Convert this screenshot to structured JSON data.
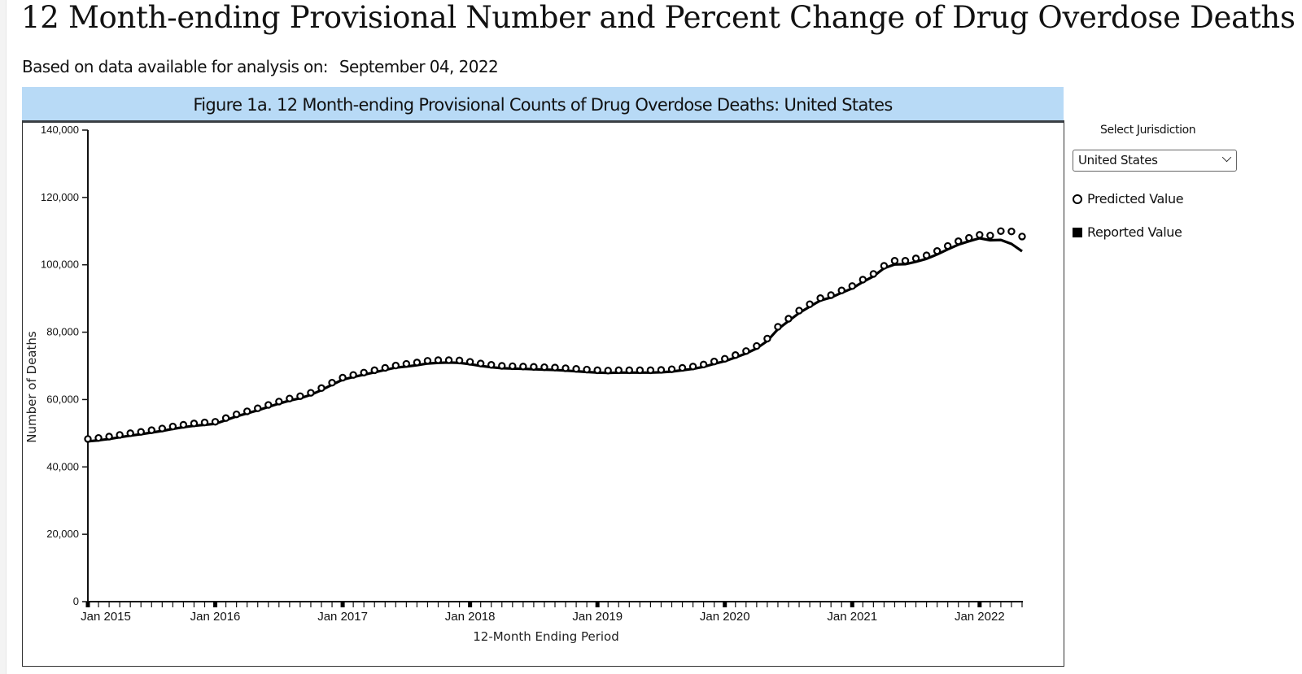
{
  "page": {
    "title": "12 Month-ending Provisional Number and Percent Change of Drug Overdose Deaths",
    "subtitle_label": "Based on data available for analysis on:",
    "subtitle_date": "September 04, 2022"
  },
  "controls": {
    "select_label": "Select Jurisdiction",
    "jurisdiction_selected": "United States"
  },
  "legend": {
    "predicted_label": "Predicted Value",
    "reported_label": "Reported Value"
  },
  "colors": {
    "header_bg": "#b8daf6",
    "series": "#000000"
  },
  "chart_data": {
    "type": "line",
    "title": "Figure 1a. 12 Month-ending Provisional Counts of Drug Overdose Deaths: United States",
    "xlabel": "12-Month Ending Period",
    "ylabel": "Number of Deaths",
    "ylim": [
      0,
      140000
    ],
    "yticks": [
      0,
      20000,
      40000,
      60000,
      80000,
      100000,
      120000,
      140000
    ],
    "ytick_labels": [
      "0",
      "20,000",
      "40,000",
      "60,000",
      "80,000",
      "100,000",
      "120,000",
      "140,000"
    ],
    "x_start": "2015-01",
    "x_end": "2022-04",
    "xtick_labels": [
      "Jan 2015",
      "Jan 2016",
      "Jan 2017",
      "Jan 2018",
      "Jan 2019",
      "Jan 2020",
      "Jan 2021",
      "Jan 2022"
    ],
    "xtick_month_index": [
      0,
      12,
      24,
      36,
      48,
      60,
      72,
      84
    ],
    "grid": false,
    "legend_position": "right",
    "series": [
      {
        "name": "Predicted Value",
        "marker": "open-circle",
        "values": [
          48300,
          48600,
          49000,
          49500,
          50000,
          50400,
          50900,
          51400,
          52000,
          52500,
          52900,
          53200,
          53400,
          54500,
          55600,
          56500,
          57400,
          58400,
          59400,
          60300,
          61000,
          62000,
          63400,
          65000,
          66500,
          67300,
          68000,
          68700,
          69400,
          70100,
          70600,
          71000,
          71500,
          71700,
          71700,
          71600,
          71200,
          70700,
          70300,
          70000,
          69900,
          69800,
          69700,
          69600,
          69500,
          69300,
          69100,
          68900,
          68700,
          68600,
          68700,
          68700,
          68700,
          68700,
          68800,
          69000,
          69400,
          69800,
          70400,
          71300,
          72100,
          73200,
          74400,
          75900,
          78100,
          81600,
          84000,
          86400,
          88300,
          90100,
          91000,
          92400,
          93700,
          95600,
          97300,
          99700,
          101200,
          101200,
          101900,
          102800,
          104100,
          105600,
          107000,
          108000,
          108900,
          108700,
          110000,
          109900,
          108400
        ]
      },
      {
        "name": "Reported Value",
        "marker": "line",
        "values": [
          47600,
          47900,
          48300,
          48800,
          49300,
          49700,
          50200,
          50700,
          51300,
          51800,
          52200,
          52500,
          52800,
          53900,
          55000,
          55900,
          56800,
          57800,
          58800,
          59700,
          60400,
          61400,
          62800,
          64400,
          65900,
          66700,
          67400,
          68100,
          68800,
          69500,
          69800,
          70200,
          70700,
          70900,
          71000,
          70900,
          70500,
          70000,
          69600,
          69300,
          69200,
          69100,
          69000,
          68900,
          68800,
          68600,
          68400,
          68200,
          68000,
          67900,
          68000,
          68000,
          68000,
          68000,
          68100,
          68300,
          68700,
          69100,
          69700,
          70600,
          71400,
          72500,
          73700,
          75200,
          77400,
          80900,
          83300,
          85700,
          87600,
          89400,
          90300,
          91700,
          93000,
          94900,
          96600,
          99000,
          100100,
          100200,
          100900,
          101800,
          103100,
          104600,
          106000,
          107000,
          107900,
          107300,
          107400,
          106200,
          104000
        ]
      }
    ]
  }
}
